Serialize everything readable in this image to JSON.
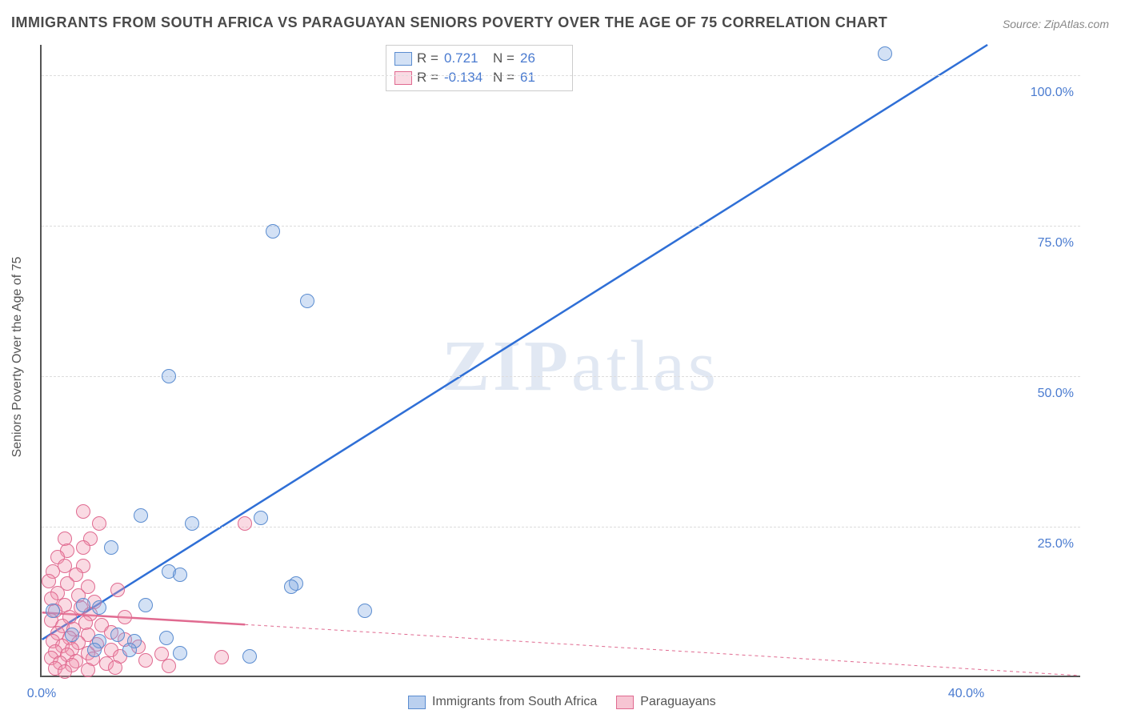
{
  "title": "IMMIGRANTS FROM SOUTH AFRICA VS PARAGUAYAN SENIORS POVERTY OVER THE AGE OF 75 CORRELATION CHART",
  "source": "Source: ZipAtlas.com",
  "ylabel": "Seniors Poverty Over the Age of 75",
  "chart": {
    "type": "scatter",
    "xlim": [
      0,
      45
    ],
    "ylim": [
      0,
      105
    ],
    "ytick_values": [
      25,
      50,
      75,
      100
    ],
    "ytick_labels": [
      "25.0%",
      "50.0%",
      "75.0%",
      "100.0%"
    ],
    "xtick_values": [
      0,
      40
    ],
    "xtick_labels": [
      "0.0%",
      "40.0%"
    ],
    "grid_color": "#dddddd",
    "background_color": "#ffffff",
    "axis_color": "#555555",
    "point_radius": 9,
    "tick_label_color": "#4a7bd0",
    "watermark": {
      "text_bold": "ZIP",
      "text_light": "atlas",
      "color": "rgba(120,150,200,0.22)",
      "fontsize": 90
    }
  },
  "series": [
    {
      "name": "Immigrants from South Africa",
      "key": "s1",
      "fill": "rgba(130,170,225,0.35)",
      "stroke": "#5a8cd0",
      "line_color": "#2f6fd6",
      "line_width": 2.5,
      "line_dash_extrap": "none",
      "R": "0.721",
      "N": "26",
      "trend": {
        "x1": 0,
        "y1": 6,
        "x2": 41,
        "y2": 105
      },
      "points": [
        [
          36.5,
          103.5
        ],
        [
          10,
          74
        ],
        [
          11.5,
          62.5
        ],
        [
          5.5,
          50
        ],
        [
          9.5,
          26.5
        ],
        [
          4.3,
          26.9
        ],
        [
          6.5,
          25.5
        ],
        [
          3,
          21.5
        ],
        [
          5.5,
          17.5
        ],
        [
          6,
          17
        ],
        [
          11,
          15.5
        ],
        [
          10.8,
          15
        ],
        [
          14,
          11
        ],
        [
          4.5,
          12
        ],
        [
          1.8,
          12
        ],
        [
          2.5,
          11.5
        ],
        [
          0.5,
          11
        ],
        [
          3.3,
          7
        ],
        [
          5.4,
          6.5
        ],
        [
          4,
          6
        ],
        [
          6,
          4
        ],
        [
          9,
          3.5
        ],
        [
          2.5,
          6
        ],
        [
          2.3,
          4.5
        ],
        [
          1.3,
          7
        ],
        [
          3.8,
          4.5
        ]
      ]
    },
    {
      "name": "Paraguayans",
      "key": "s2",
      "fill": "rgba(240,150,175,0.35)",
      "stroke": "#e06a90",
      "line_color": "#e06a90",
      "line_width": 2.5,
      "line_dash_extrap": "4 4",
      "R": "-0.134",
      "N": "61",
      "trend_solid": {
        "x1": 0,
        "y1": 10.5,
        "x2": 8.8,
        "y2": 8.5
      },
      "trend_dash": {
        "x1": 8.8,
        "y1": 8.5,
        "x2": 45,
        "y2": 0
      },
      "points": [
        [
          1.8,
          27.5
        ],
        [
          8.8,
          25.5
        ],
        [
          2.5,
          25.5
        ],
        [
          1.0,
          23
        ],
        [
          2.1,
          23
        ],
        [
          1.8,
          21.5
        ],
        [
          1.1,
          21
        ],
        [
          0.7,
          20
        ],
        [
          1.0,
          18.5
        ],
        [
          1.8,
          18.5
        ],
        [
          0.5,
          17.5
        ],
        [
          1.5,
          17
        ],
        [
          0.3,
          16
        ],
        [
          1.1,
          15.5
        ],
        [
          2.0,
          15
        ],
        [
          3.3,
          14.5
        ],
        [
          0.7,
          14
        ],
        [
          1.6,
          13.5
        ],
        [
          0.4,
          13
        ],
        [
          2.3,
          12.5
        ],
        [
          1.0,
          12
        ],
        [
          1.7,
          11.5
        ],
        [
          0.6,
          11
        ],
        [
          2.1,
          10.5
        ],
        [
          3.6,
          10
        ],
        [
          1.2,
          10
        ],
        [
          0.4,
          9.5
        ],
        [
          1.9,
          9
        ],
        [
          0.9,
          8.5
        ],
        [
          2.6,
          8.7
        ],
        [
          1.4,
          8
        ],
        [
          3.0,
          7.5
        ],
        [
          0.7,
          7.3
        ],
        [
          2.0,
          7
        ],
        [
          1.2,
          6.5
        ],
        [
          3.6,
          6.3
        ],
        [
          0.5,
          6
        ],
        [
          1.6,
          5.7
        ],
        [
          2.4,
          5.5
        ],
        [
          0.9,
          5.2
        ],
        [
          4.2,
          5
        ],
        [
          1.3,
          4.7
        ],
        [
          3.0,
          4.5
        ],
        [
          0.6,
          4.3
        ],
        [
          2.0,
          4
        ],
        [
          5.2,
          3.9
        ],
        [
          1.1,
          3.7
        ],
        [
          3.4,
          3.5
        ],
        [
          0.4,
          3.2
        ],
        [
          2.2,
          3
        ],
        [
          4.5,
          2.8
        ],
        [
          1.5,
          2.6
        ],
        [
          0.8,
          2.4
        ],
        [
          2.8,
          2.2
        ],
        [
          1.3,
          2
        ],
        [
          5.5,
          1.8
        ],
        [
          3.2,
          1.6
        ],
        [
          0.6,
          1.4
        ],
        [
          2.0,
          1.2
        ],
        [
          7.8,
          3.3
        ],
        [
          1.0,
          0.9
        ]
      ]
    }
  ],
  "legend": {
    "items": [
      {
        "label": "Immigrants from South Africa",
        "fill": "rgba(130,170,225,0.55)",
        "stroke": "#5a8cd0"
      },
      {
        "label": "Paraguayans",
        "fill": "rgba(240,150,175,0.55)",
        "stroke": "#e06a90"
      }
    ]
  },
  "stats_labels": {
    "R": "R =",
    "N": "N ="
  }
}
